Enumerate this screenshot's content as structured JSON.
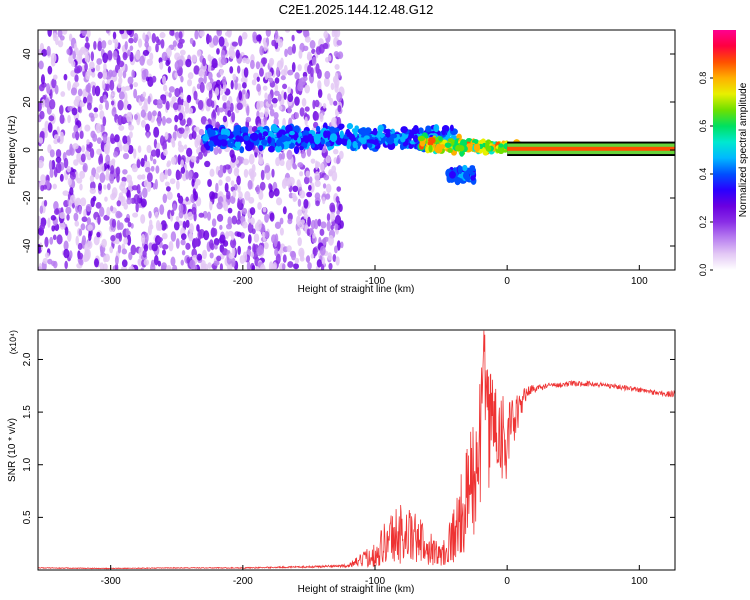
{
  "page": {
    "title": "C2E1.2025.144.12.48.G12"
  },
  "chart_data": [
    {
      "type": "heatmap",
      "title": "C2E1.2025.144.12.48.G12",
      "xlabel": "Height of straight line (km)",
      "ylabel": "Frequency (Hz)",
      "xlim": [
        -355,
        127
      ],
      "ylim": [
        -50,
        50
      ],
      "x_ticks": [
        -300,
        -200,
        -100,
        0,
        100
      ],
      "x_tick_labels": [
        "-300",
        "-200",
        "-100",
        "0",
        "100"
      ],
      "y_ticks": [
        -40,
        -20,
        0,
        20,
        40
      ],
      "y_tick_labels": [
        "-40",
        "-20",
        "0",
        "20",
        "40"
      ],
      "colorbar": {
        "label": "Normalized spectral amplitude",
        "range": [
          0,
          1
        ],
        "ticks": [
          0.0,
          0.2,
          0.4,
          0.6,
          0.8
        ],
        "tick_labels": [
          "0.0",
          "0.2",
          "0.4",
          "0.6",
          "0.8"
        ],
        "colormap": [
          "#ffffff",
          "#e3c8f5",
          "#b87ef0",
          "#8a2ee6",
          "#6a00e0",
          "#2a00ff",
          "#0050ff",
          "#00b8ff",
          "#00e8d0",
          "#00e060",
          "#6ee000",
          "#e8f000",
          "#ffb000",
          "#ff5000",
          "#ff0040",
          "#ff0090"
        ]
      },
      "regions": [
        {
          "name": "diffuse noise",
          "x": [
            -355,
            -125
          ],
          "freq_range": [
            -50,
            50
          ],
          "amplitude": [
            0.05,
            0.28
          ]
        },
        {
          "name": "scattered band",
          "x": [
            -230,
            -40
          ],
          "freq_center": 5,
          "freq_width": 12,
          "amplitude": [
            0.3,
            0.5
          ]
        },
        {
          "name": "tail",
          "x": [
            -45,
            -25
          ],
          "freq_center": -10,
          "freq_width": 8,
          "amplitude": [
            0.3,
            0.45
          ]
        },
        {
          "name": "converging signal",
          "x": [
            -65,
            10
          ],
          "freq_center": 1,
          "freq_width": 5,
          "amplitude": [
            0.55,
            0.85
          ]
        },
        {
          "name": "steady line",
          "x": [
            0,
            127
          ],
          "freq_center": 0.5,
          "freq_width": 2,
          "amplitude": [
            0.85,
            0.95
          ]
        }
      ]
    },
    {
      "type": "line",
      "xlabel": "Height of straight line (km)",
      "ylabel": "SNR (10 * v/v)",
      "y_scale_label": "(x10⁴)",
      "xlim": [
        -355,
        127
      ],
      "ylim": [
        0,
        22800
      ],
      "x_ticks": [
        -300,
        -200,
        -100,
        0,
        100
      ],
      "x_tick_labels": [
        "-300",
        "-200",
        "-100",
        "0",
        "100"
      ],
      "y_ticks": [
        5000,
        10000,
        15000,
        20000
      ],
      "y_tick_labels": [
        "0.5",
        "1.0",
        "1.5",
        "2.0"
      ],
      "color": "#ee3333",
      "series": [
        {
          "x": [
            -355,
            -300,
            -250,
            -200,
            -150,
            -120,
            -100,
            -90,
            -80,
            -70,
            -60,
            -50,
            -40,
            -35,
            -30,
            -25,
            -20,
            -18,
            -15,
            -12,
            -10,
            -5,
            0,
            5,
            10,
            15,
            20,
            25,
            30,
            40,
            50,
            60,
            70,
            80,
            90,
            100,
            110,
            120,
            127
          ],
          "y": [
            200,
            150,
            200,
            200,
            300,
            400,
            1500,
            3000,
            3500,
            3000,
            2300,
            1300,
            3500,
            5000,
            7000,
            9000,
            12000,
            22500,
            13000,
            15000,
            14000,
            13500,
            12000,
            14000,
            15500,
            17000,
            17200,
            17300,
            17500,
            17600,
            17700,
            17700,
            17600,
            17500,
            17300,
            17100,
            16900,
            16700,
            16700
          ],
          "noise_envelope": [
            40,
            40,
            40,
            50,
            80,
            150,
            1200,
            2500,
            3000,
            2500,
            1800,
            1000,
            3000,
            4000,
            5000,
            6000,
            6500,
            2000,
            6000,
            6000,
            6000,
            5000,
            4000,
            2500,
            1200,
            700,
            400,
            300,
            250,
            250,
            250,
            250,
            250,
            250,
            250,
            250,
            250,
            300,
            300
          ]
        }
      ]
    }
  ]
}
